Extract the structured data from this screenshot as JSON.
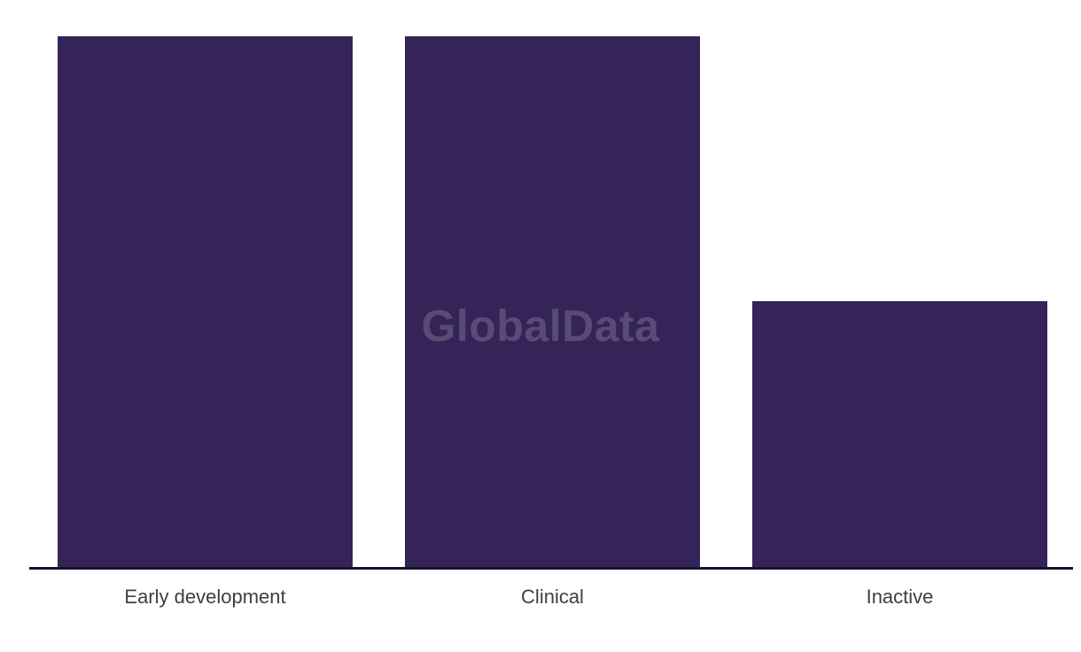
{
  "chart_data": {
    "type": "bar",
    "title": "",
    "xlabel": "",
    "ylabel": "",
    "categories": [
      "Early development",
      "Clinical",
      "Inactive"
    ],
    "values": [
      100,
      100,
      50
    ],
    "ylim": [
      0,
      105
    ],
    "grid": false,
    "legend": false,
    "y_axis_shown": false,
    "values_note": "no y-axis or data labels shown; values are relative bar heights (Inactive is half of the other two)",
    "bar_color": "#352457",
    "axis_line_color": "#16152e",
    "label_color": "#3f3f3f",
    "background_color": "#ffffff"
  },
  "watermark": {
    "text": "GlobalData",
    "color": "#594b76"
  }
}
